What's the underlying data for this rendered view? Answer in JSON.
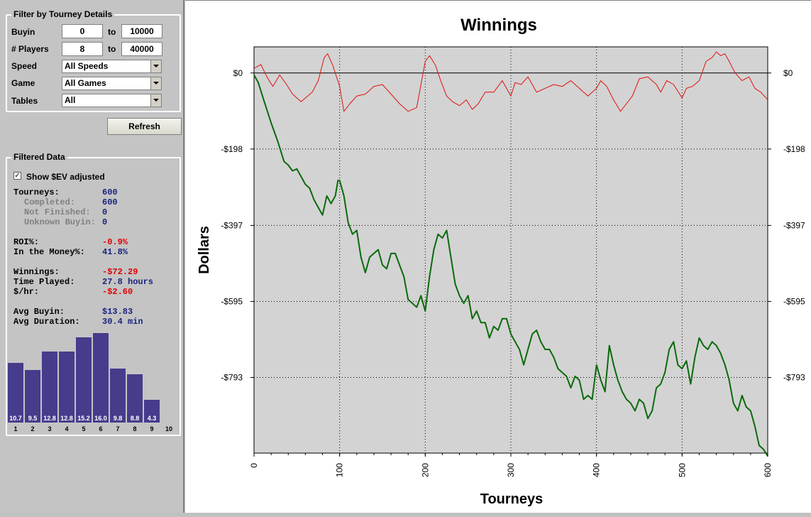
{
  "filter": {
    "title": "Filter by Tourney Details",
    "buyin": {
      "label": "Buyin",
      "from": "0",
      "to_label": "to",
      "to": "10000"
    },
    "players": {
      "label": "# Players",
      "from": "8",
      "to_label": "to",
      "to": "40000"
    },
    "speed": {
      "label": "Speed",
      "value": "All Speeds"
    },
    "game": {
      "label": "Game",
      "value": "All Games"
    },
    "tables": {
      "label": "Tables",
      "value": "All"
    },
    "refresh_label": "Refresh"
  },
  "filtered": {
    "title": "Filtered Data",
    "show_ev_label": "Show $EV adjusted",
    "show_ev_checked": true,
    "stats": {
      "tourneys": {
        "label": "Tourneys:",
        "value": "600"
      },
      "completed": {
        "label": "Completed:",
        "value": "600"
      },
      "not_finished": {
        "label": "Not Finished:",
        "value": "0"
      },
      "unknown_buyin": {
        "label": "Unknown Buyin:",
        "value": "0"
      },
      "roi": {
        "label": "ROI%:",
        "value": "-0.9%"
      },
      "itm": {
        "label": "In the Money%:",
        "value": "41.8%"
      },
      "winnings": {
        "label": "Winnings:",
        "value": "-$72.29"
      },
      "time_played": {
        "label": "Time Played:",
        "value": "27.8 hours"
      },
      "per_hour": {
        "label": "$/hr:",
        "value": "-$2.60"
      },
      "avg_buyin": {
        "label": "Avg Buyin:",
        "value": "$13.83"
      },
      "avg_duration": {
        "label": "Avg Duration:",
        "value": "30.4 min"
      }
    },
    "histogram": {
      "bins": [
        "1",
        "2",
        "3",
        "4",
        "5",
        "6",
        "7",
        "8",
        "9",
        "10"
      ],
      "values": [
        10.7,
        9.5,
        12.8,
        12.8,
        15.2,
        16.0,
        9.8,
        8.8,
        4.3,
        null
      ],
      "value_labels": [
        "10.7",
        "9.5",
        "12.8",
        "12.8",
        "15.2",
        "16.0",
        "9.8",
        "8.8",
        "4.3",
        ""
      ],
      "bar_color": "#463c8c"
    }
  },
  "chart_data": {
    "type": "line",
    "title": "Winnings",
    "xlabel": "Tourneys",
    "ylabel": "Dollars",
    "xlim": [
      0,
      600
    ],
    "ylim": [
      -990,
      68
    ],
    "x_ticks": [
      0,
      100,
      200,
      300,
      400,
      500,
      600
    ],
    "y_ticks": [
      0,
      -198,
      -397,
      -595,
      -793
    ],
    "y_tick_labels": [
      "$0",
      "-$198",
      "-$397",
      "-$595",
      "-$793"
    ],
    "grid": true,
    "background": "#d3d3d3",
    "series": [
      {
        "color": "#e01010",
        "x": [
          0,
          8,
          15,
          22,
          30,
          38,
          45,
          55,
          60,
          68,
          75,
          82,
          86,
          92,
          100,
          105,
          112,
          120,
          130,
          140,
          150,
          160,
          170,
          180,
          190,
          200,
          205,
          212,
          218,
          225,
          232,
          240,
          248,
          255,
          262,
          270,
          280,
          290,
          300,
          305,
          312,
          320,
          330,
          340,
          350,
          360,
          370,
          380,
          390,
          400,
          405,
          412,
          420,
          428,
          435,
          442,
          450,
          460,
          470,
          475,
          482,
          490,
          500,
          505,
          512,
          520,
          528,
          535,
          540,
          545,
          550,
          555,
          562,
          570,
          578,
          585,
          592,
          600
        ],
        "y": [
          12,
          22,
          -10,
          -35,
          -5,
          -30,
          -55,
          -75,
          -65,
          -50,
          -20,
          40,
          50,
          20,
          -35,
          -100,
          -80,
          -60,
          -55,
          -35,
          -30,
          -55,
          -80,
          -100,
          -90,
          30,
          45,
          20,
          -20,
          -60,
          -75,
          -85,
          -70,
          -95,
          -80,
          -50,
          -50,
          -20,
          -60,
          -25,
          -30,
          -10,
          -50,
          -40,
          -30,
          -35,
          -20,
          -40,
          -60,
          -40,
          -20,
          -35,
          -70,
          -100,
          -80,
          -60,
          -15,
          -10,
          -30,
          -50,
          -20,
          -30,
          -65,
          -40,
          -35,
          -20,
          30,
          40,
          55,
          45,
          50,
          30,
          0,
          -20,
          -10,
          -40,
          -50,
          -70
        ]
      },
      {
        "color": "#0a6a0a",
        "x": [
          0,
          5,
          12,
          20,
          28,
          35,
          40,
          45,
          50,
          55,
          60,
          65,
          70,
          75,
          80,
          85,
          90,
          95,
          98,
          100,
          105,
          110,
          115,
          120,
          125,
          130,
          135,
          140,
          145,
          150,
          155,
          160,
          165,
          170,
          175,
          180,
          185,
          190,
          195,
          200,
          205,
          210,
          215,
          220,
          225,
          230,
          235,
          240,
          245,
          250,
          255,
          260,
          265,
          270,
          275,
          280,
          285,
          290,
          295,
          300,
          305,
          310,
          315,
          320,
          325,
          330,
          335,
          340,
          345,
          350,
          355,
          360,
          365,
          370,
          375,
          380,
          385,
          390,
          395,
          400,
          405,
          410,
          415,
          420,
          425,
          430,
          435,
          440,
          445,
          450,
          455,
          460,
          465,
          470,
          475,
          480,
          485,
          490,
          495,
          500,
          505,
          510,
          515,
          520,
          525,
          530,
          535,
          540,
          545,
          550,
          555,
          560,
          565,
          570,
          575,
          580,
          585,
          590,
          595,
          600
        ],
        "y": [
          -5,
          -25,
          -75,
          -130,
          -180,
          -230,
          -240,
          -255,
          -250,
          -270,
          -290,
          -300,
          -330,
          -350,
          -370,
          -320,
          -340,
          -320,
          -280,
          -280,
          -320,
          -390,
          -420,
          -410,
          -480,
          -520,
          -480,
          -470,
          -460,
          -500,
          -510,
          -470,
          -470,
          -500,
          -530,
          -590,
          -600,
          -610,
          -580,
          -620,
          -530,
          -460,
          -420,
          -430,
          -410,
          -480,
          -550,
          -580,
          -600,
          -580,
          -640,
          -620,
          -650,
          -650,
          -690,
          -660,
          -670,
          -640,
          -640,
          -680,
          -700,
          -720,
          -760,
          -720,
          -680,
          -670,
          -700,
          -720,
          -720,
          -740,
          -770,
          -780,
          -790,
          -820,
          -790,
          -800,
          -850,
          -840,
          -850,
          -760,
          -800,
          -830,
          -710,
          -760,
          -800,
          -830,
          -850,
          -860,
          -880,
          -850,
          -860,
          -900,
          -880,
          -820,
          -810,
          -780,
          -720,
          -700,
          -760,
          -770,
          -750,
          -810,
          -740,
          -690,
          -710,
          -720,
          -700,
          -710,
          -730,
          -760,
          -800,
          -860,
          -880,
          -840,
          -870,
          -880,
          -920,
          -970,
          -980,
          -998
        ]
      }
    ]
  }
}
